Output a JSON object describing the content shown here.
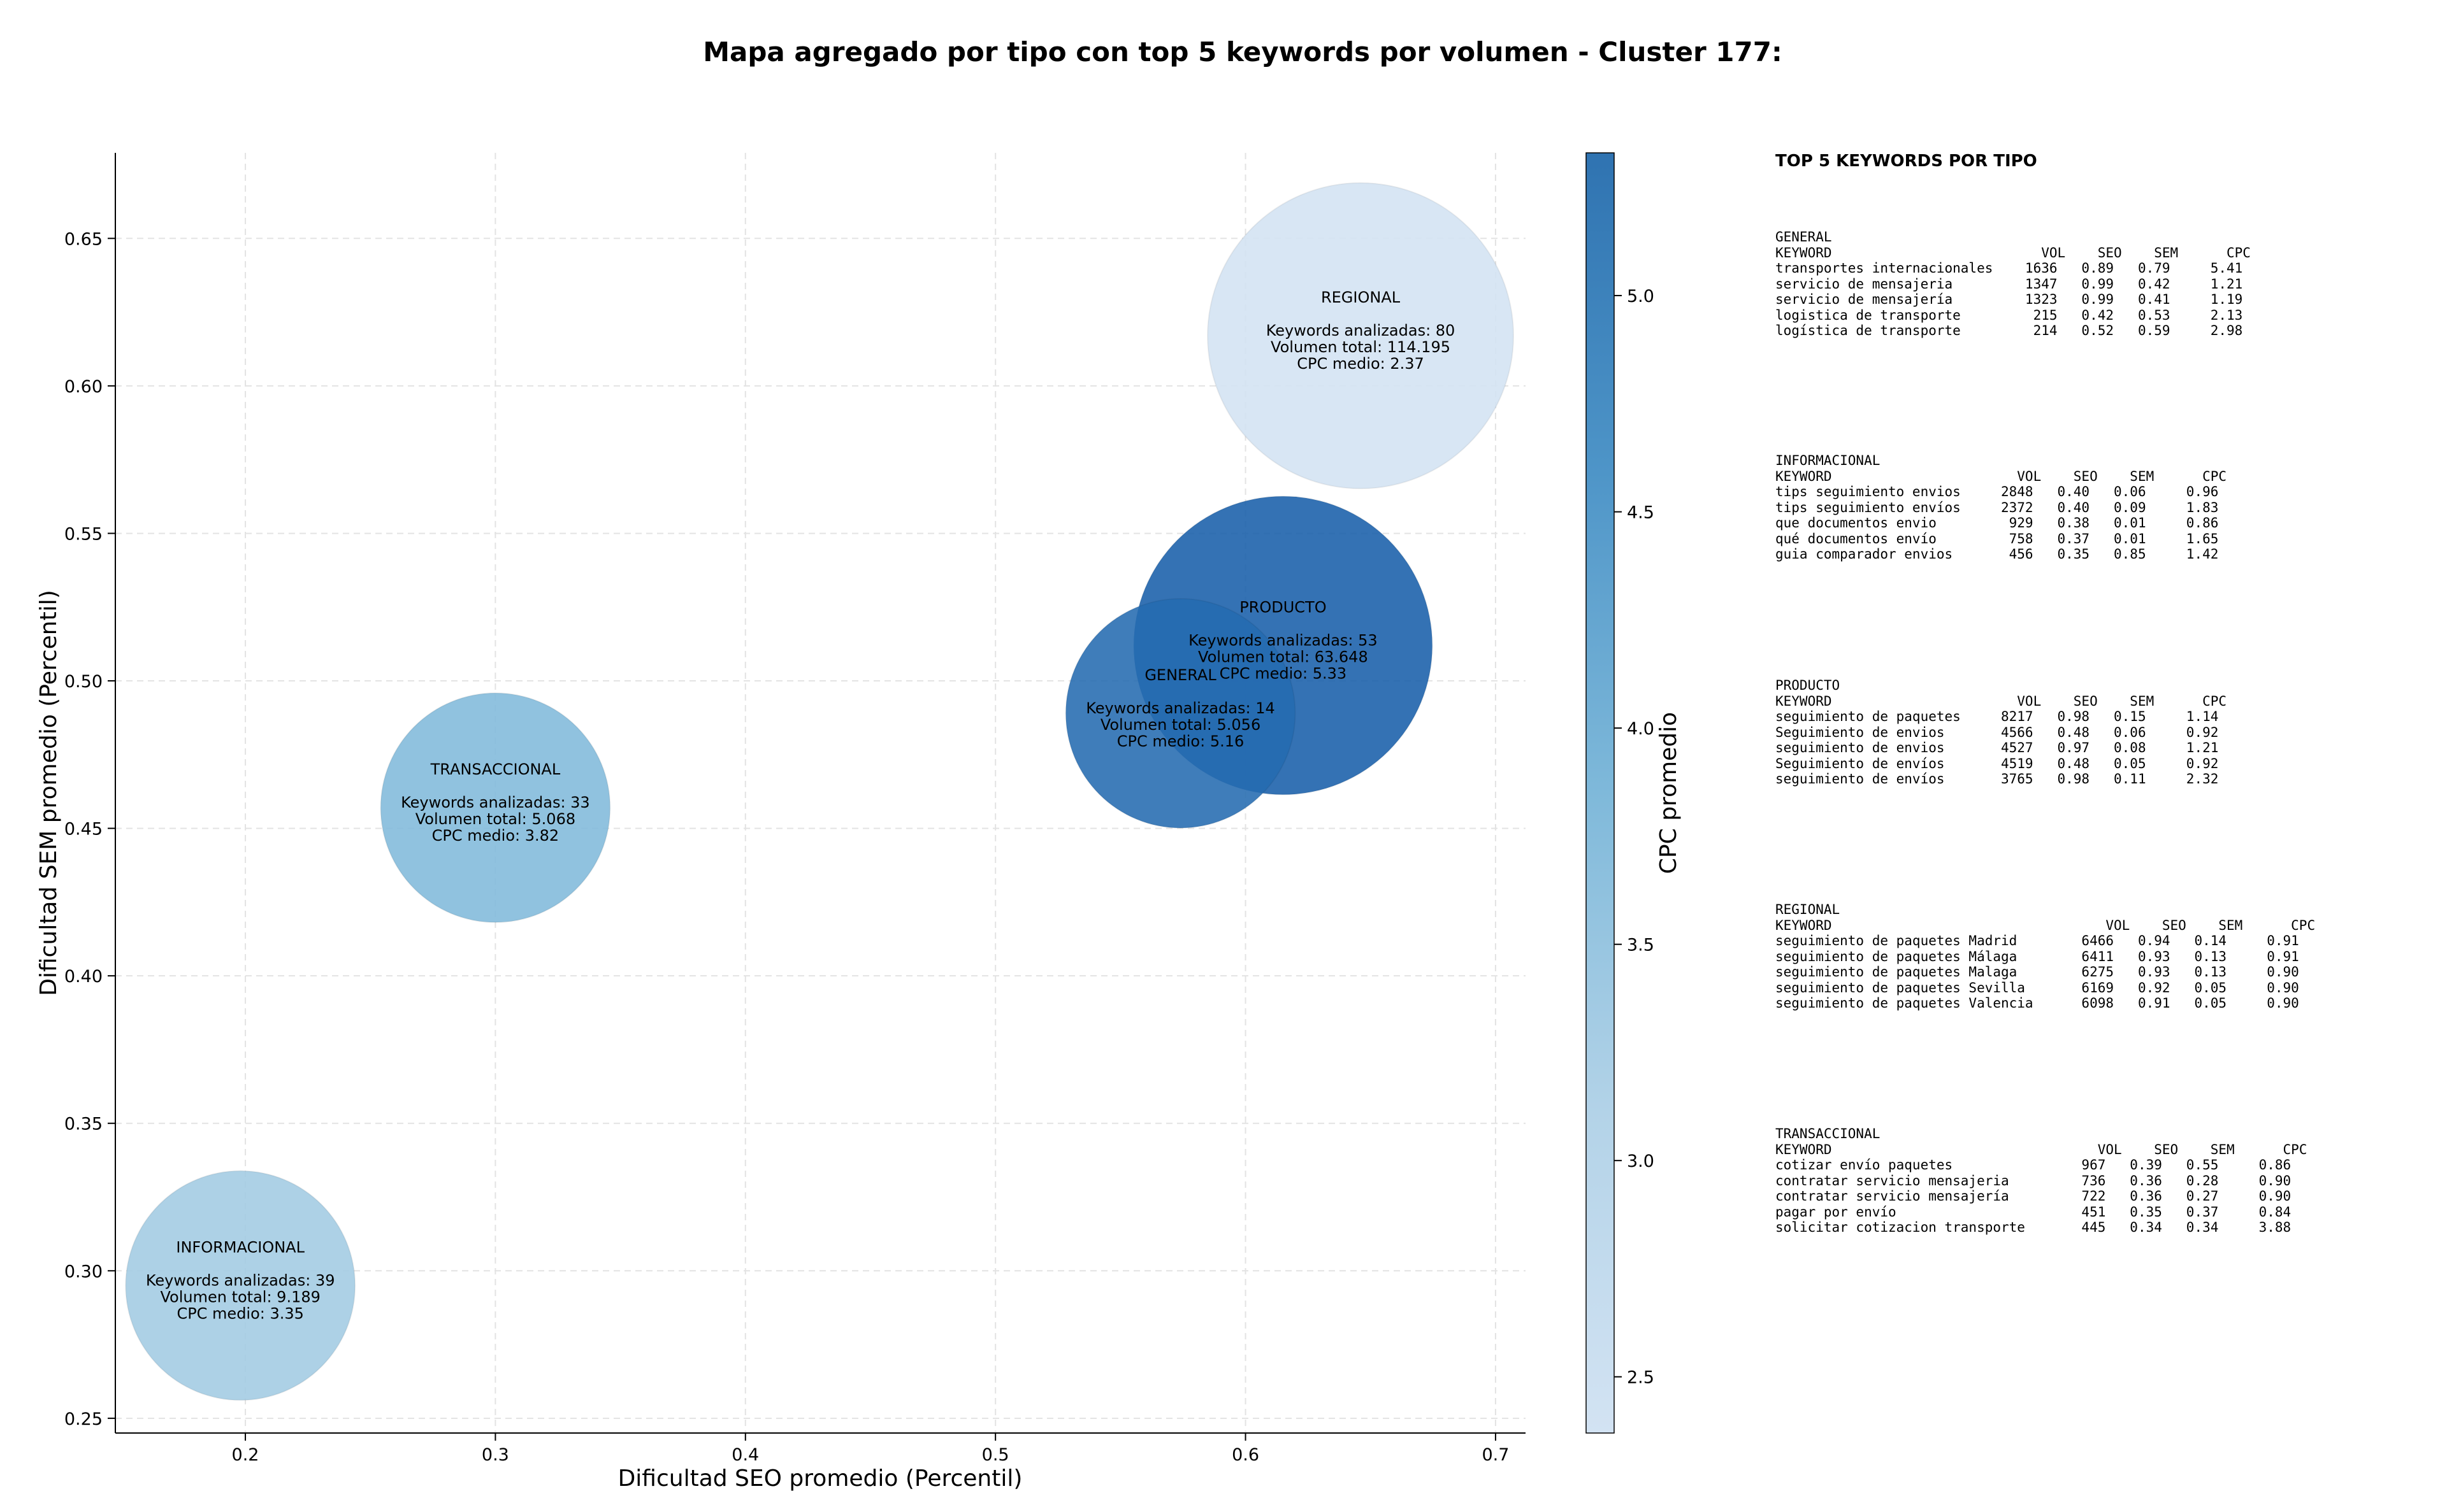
{
  "chart_data": {
    "type": "scatter",
    "title": "Mapa agregado por tipo con top 5 keywords por volumen - Cluster 177:",
    "xlabel": "Dificultad SEO promedio (Percentil)",
    "ylabel": "Dificultad SEM promedio (Percentil)",
    "xlim": [
      0.148,
      0.712
    ],
    "ylim": [
      0.245,
      0.679
    ],
    "xticks": [
      "0.2",
      "0.3",
      "0.4",
      "0.5",
      "0.6",
      "0.7"
    ],
    "yticks": [
      "0.25",
      "0.30",
      "0.35",
      "0.40",
      "0.45",
      "0.50",
      "0.55",
      "0.60",
      "0.65"
    ],
    "grid": true,
    "colorbar": {
      "label": "CPC promedio",
      "range": [
        2.37,
        5.33
      ],
      "ticks": [
        "2.5",
        "3.0",
        "3.5",
        "4.0",
        "4.5",
        "5.0"
      ],
      "colormap": "Blues"
    },
    "points": [
      {
        "name": "REGIONAL",
        "x": 0.646,
        "y": 0.617,
        "cpc": 2.37,
        "keywords_line": "Keywords analizadas: 80",
        "volume_line": "Volumen total: 114.195",
        "cpc_line": "CPC medio: 2.37"
      },
      {
        "name": "PRODUCTO",
        "x": 0.615,
        "y": 0.512,
        "cpc": 5.33,
        "keywords_line": "Keywords analizadas: 53",
        "volume_line": "Volumen total: 63.648",
        "cpc_line": "CPC medio: 5.33"
      },
      {
        "name": "GENERAL",
        "x": 0.574,
        "y": 0.489,
        "cpc": 5.16,
        "keywords_line": "Keywords analizadas: 14",
        "volume_line": "Volumen total: 5.056",
        "cpc_line": "CPC medio: 5.16"
      },
      {
        "name": "TRANSACCIONAL",
        "x": 0.3,
        "y": 0.457,
        "cpc": 3.82,
        "keywords_line": "Keywords analizadas: 33",
        "volume_line": "Volumen total: 5.068",
        "cpc_line": "CPC medio: 3.82"
      },
      {
        "name": "INFORMACIONAL",
        "x": 0.198,
        "y": 0.295,
        "cpc": 3.35,
        "keywords_line": "Keywords analizadas: 39",
        "volume_line": "Volumen total: 9.189",
        "cpc_line": "CPC medio: 3.35"
      }
    ]
  },
  "top_panel": {
    "title": "TOP 5 KEYWORDS POR TIPO",
    "blocks": [
      {
        "type": "GENERAL",
        "header": "KEYWORD                          VOL    SEO    SEM      CPC",
        "rows": [
          "transportes internacionales    1636   0.89   0.79     5.41",
          "servicio de mensajeria         1347   0.99   0.42     1.21",
          "servicio de mensajería         1323   0.99   0.41     1.19",
          "logistica de transporte         215   0.42   0.53     2.13",
          "logística de transporte         214   0.52   0.59     2.98"
        ]
      },
      {
        "type": "INFORMACIONAL",
        "header": "KEYWORD                       VOL    SEO    SEM      CPC",
        "rows": [
          "tips seguimiento envios     2848   0.40   0.06     0.96",
          "tips seguimiento envíos     2372   0.40   0.09     1.83",
          "que documentos envio         929   0.38   0.01     0.86",
          "qué documentos envío         758   0.37   0.01     1.65",
          "guia comparador envios       456   0.35   0.85     1.42"
        ]
      },
      {
        "type": "PRODUCTO",
        "header": "KEYWORD                       VOL    SEO    SEM      CPC",
        "rows": [
          "seguimiento de paquetes     8217   0.98   0.15     1.14",
          "Seguimiento de envios       4566   0.48   0.06     0.92",
          "seguimiento de envios       4527   0.97   0.08     1.21",
          "Seguimiento de envíos       4519   0.48   0.05     0.92",
          "seguimiento de envíos       3765   0.98   0.11     2.32"
        ]
      },
      {
        "type": "REGIONAL",
        "header": "KEYWORD                                  VOL    SEO    SEM      CPC",
        "rows": [
          "seguimiento de paquetes Madrid        6466   0.94   0.14     0.91",
          "seguimiento de paquetes Málaga        6411   0.93   0.13     0.91",
          "seguimiento de paquetes Malaga        6275   0.93   0.13     0.90",
          "seguimiento de paquetes Sevilla       6169   0.92   0.05     0.90",
          "seguimiento de paquetes Valencia      6098   0.91   0.05     0.90"
        ]
      },
      {
        "type": "TRANSACCIONAL",
        "header": "KEYWORD                                 VOL    SEO    SEM      CPC",
        "rows": [
          "cotizar envío paquetes                967   0.39   0.55     0.86",
          "contratar servicio mensajeria         736   0.36   0.28     0.90",
          "contratar servicio mensajería         722   0.36   0.27     0.90",
          "pagar por envío                       451   0.35   0.37     0.84",
          "solicitar cotizacion transporte       445   0.34   0.34     3.88"
        ]
      }
    ]
  }
}
